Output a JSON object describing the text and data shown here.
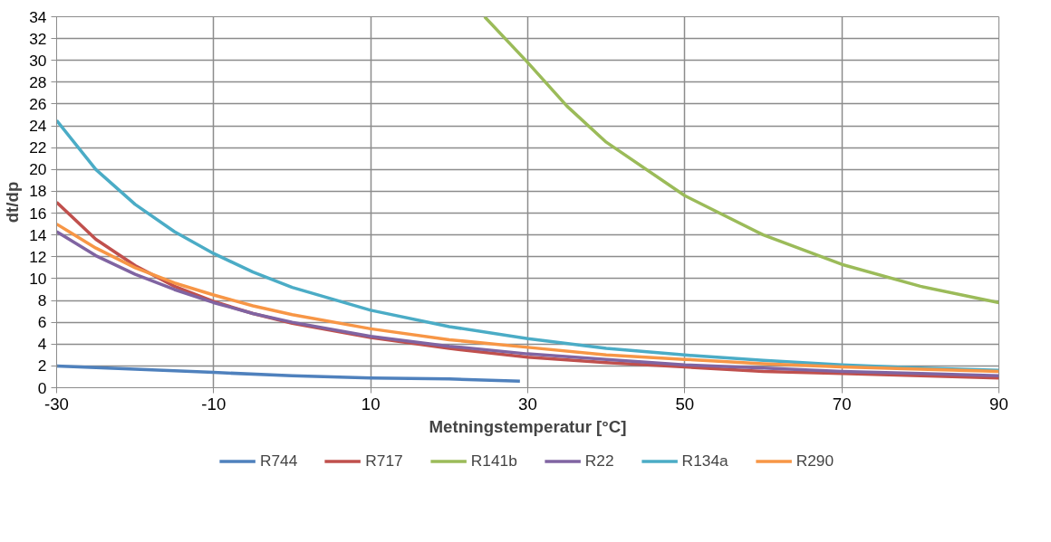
{
  "chart_data": {
    "type": "line",
    "xlabel": "Metningstemperatur [°C]",
    "ylabel": "dt/dp",
    "xlim": [
      -30,
      90
    ],
    "xticks": [
      -30,
      -10,
      10,
      30,
      50,
      70,
      90
    ],
    "ylim": [
      0,
      34
    ],
    "yticks": [
      0,
      2,
      4,
      6,
      8,
      10,
      12,
      14,
      16,
      18,
      20,
      22,
      24,
      26,
      28,
      30,
      32,
      34
    ],
    "grid": true,
    "legend": "bottom",
    "marker": "none",
    "line_style": "solid",
    "series": [
      {
        "name": "R744",
        "color": "#4f81bd",
        "x": [
          -30,
          -20,
          -10,
          0,
          10,
          20,
          29
        ],
        "values": [
          2.0,
          1.7,
          1.4,
          1.1,
          0.9,
          0.8,
          0.6
        ]
      },
      {
        "name": "R717",
        "color": "#c0504d",
        "x": [
          -30,
          -25,
          -20,
          -15,
          -10,
          -5,
          0,
          10,
          20,
          30,
          40,
          50,
          60,
          70,
          80,
          90
        ],
        "values": [
          17,
          13.6,
          11.2,
          9.3,
          7.9,
          6.8,
          5.9,
          4.6,
          3.6,
          2.8,
          2.3,
          1.9,
          1.5,
          1.3,
          1.1,
          0.9
        ]
      },
      {
        "name": "R141b",
        "color": "#9bbb59",
        "x": [
          24.5,
          30,
          35,
          40,
          50,
          60,
          70,
          80,
          90
        ],
        "values": [
          34,
          29.8,
          25.8,
          22.5,
          17.6,
          14.0,
          11.3,
          9.3,
          7.8
        ]
      },
      {
        "name": "R22",
        "color": "#8064a2",
        "x": [
          -30,
          -25,
          -20,
          -15,
          -10,
          -5,
          0,
          10,
          20,
          30,
          40,
          50,
          60,
          70,
          80,
          90
        ],
        "values": [
          14.3,
          12.1,
          10.4,
          9.0,
          7.8,
          6.8,
          6.0,
          4.7,
          3.8,
          3.1,
          2.6,
          2.1,
          1.8,
          1.5,
          1.3,
          1.1
        ]
      },
      {
        "name": "R134a",
        "color": "#4bacc6",
        "x": [
          -30,
          -25,
          -20,
          -15,
          -10,
          -5,
          0,
          10,
          20,
          30,
          40,
          50,
          60,
          70,
          80,
          90
        ],
        "values": [
          24.5,
          20,
          16.8,
          14.3,
          12.3,
          10.6,
          9.2,
          7.1,
          5.6,
          4.5,
          3.6,
          3.0,
          2.5,
          2.1,
          1.8,
          1.6
        ]
      },
      {
        "name": "R290",
        "color": "#f79646",
        "x": [
          -30,
          -25,
          -20,
          -15,
          -10,
          -5,
          0,
          10,
          20,
          30,
          40,
          50,
          60,
          70,
          80,
          90
        ],
        "values": [
          15.0,
          12.8,
          11.0,
          9.6,
          8.5,
          7.5,
          6.7,
          5.4,
          4.4,
          3.7,
          3.0,
          2.6,
          2.2,
          1.9,
          1.7,
          1.5
        ]
      }
    ]
  }
}
